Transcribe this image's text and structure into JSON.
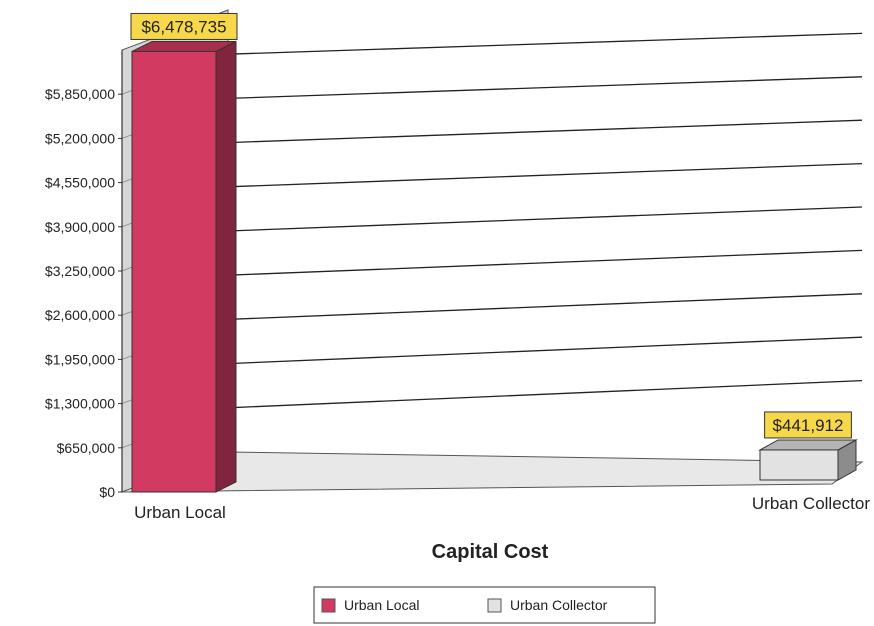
{
  "chart_data": {
    "type": "bar",
    "title": "Capital Cost",
    "categories": [
      "Urban Local",
      "Urban Collector"
    ],
    "series": [
      {
        "name": "Urban Local",
        "values": [
          6478735,
          null
        ],
        "color": "#d23a62"
      },
      {
        "name": "Urban Collector",
        "values": [
          null,
          441912
        ],
        "color": "#e2e2e2"
      }
    ],
    "data_labels": [
      "$6,478,735",
      "$441,912"
    ],
    "y_ticks": [
      0,
      650000,
      1300000,
      1950000,
      2600000,
      3250000,
      3900000,
      4550000,
      5200000,
      5850000
    ],
    "y_tick_labels": [
      "$0",
      "$650,000",
      "$1,300,000",
      "$1,950,000",
      "$2,600,000",
      "$3,250,000",
      "$3,900,000",
      "$4,550,000",
      "$5,200,000",
      "$5,850,000"
    ],
    "ylim": [
      0,
      6500000
    ],
    "grid": true,
    "legend_position": "bottom",
    "label_bg_color": "#f7d84a",
    "three_d": true
  }
}
